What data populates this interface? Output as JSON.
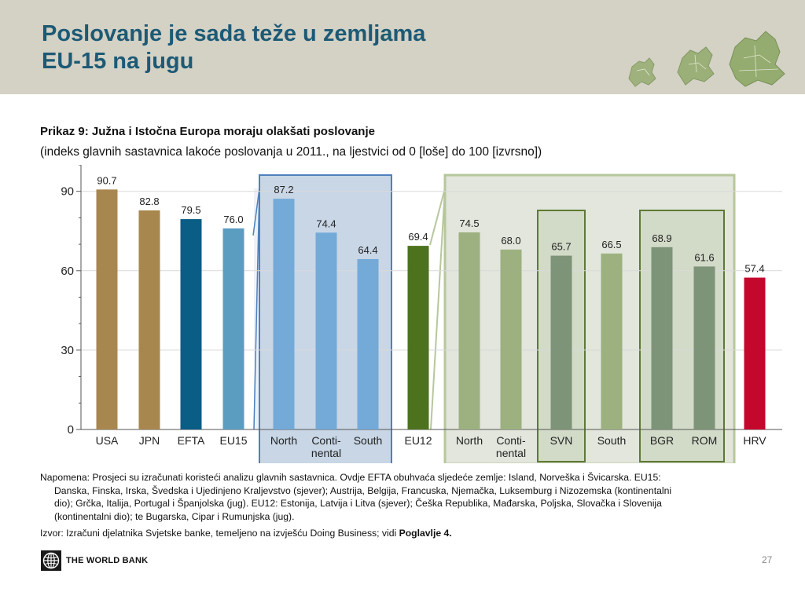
{
  "header": {
    "title_line1": "Poslovanje je sada teže u zemljama",
    "title_line2": "EU-15 na jugu"
  },
  "figure": {
    "title": "Prikaz 9: Južna i Istočna Europa moraju olakšati poslovanje",
    "subtitle": "(indeks glavnih sastavnica lakoće poslovanja u 2011., na ljestvici od 0 [loše] do 100 [izvrsno])"
  },
  "chart_data": {
    "type": "bar",
    "ylim": [
      0,
      100
    ],
    "yticks": [
      0,
      30,
      60,
      90
    ],
    "categories": [
      [
        "USA"
      ],
      [
        "JPN"
      ],
      [
        "EFTA"
      ],
      [
        "EU15"
      ],
      [
        "North"
      ],
      [
        "Conti-",
        "nental"
      ],
      [
        "South"
      ],
      [
        "EU12"
      ],
      [
        "North"
      ],
      [
        "Conti-",
        "nental"
      ],
      [
        "SVN"
      ],
      [
        "South"
      ],
      [
        "BGR"
      ],
      [
        "ROM"
      ],
      [
        "HRV"
      ]
    ],
    "values": [
      90.7,
      82.8,
      79.5,
      76.0,
      87.2,
      74.4,
      64.4,
      69.4,
      74.5,
      68.0,
      65.7,
      66.5,
      68.9,
      61.6,
      57.4
    ],
    "value_labels": [
      "90.7",
      "82.8",
      "79.5",
      "76.0",
      "87.2",
      "74.4",
      "64.4",
      "69.4",
      "74.5",
      "68.0",
      "65.7",
      "66.5",
      "68.9",
      "61.6",
      "57.4"
    ],
    "colors": [
      "#a8874f",
      "#a8874f",
      "#0a5d84",
      "#5b9dc1",
      "#74aad8",
      "#74aad8",
      "#74aad8",
      "#4c721e",
      "#9cb17f",
      "#9cb17f",
      "#7d9478",
      "#9cb17f",
      "#7d9478",
      "#7d9478",
      "#c4072d"
    ],
    "groups": {
      "eu15_box": {
        "fill": "#c8d6e6",
        "stroke": "#4f80bd"
      },
      "eu12_box": {
        "fill": "#e2e6dc",
        "stroke": "#b7c79c"
      },
      "sub_box": {
        "fill": "#d2dac8",
        "stroke": "#5e7a34"
      }
    }
  },
  "notes": {
    "line1": "Napomena: Prosjeci su izračunati koristeći analizu glavnih sastavnica. Ovdje EFTA obuhvaća sljedeće zemlje: Island, Norveška i Švicarska. EU15:",
    "line2": "Danska, Finska, Irska, Švedska i Ujedinjeno Kraljevstvo (sjever); Austrija, Belgija, Francuska, Njemačka, Luksemburg i Nizozemska (kontinentalni",
    "line3": "dio); Grčka, Italija, Portugal i Španjolska (jug). EU12: Estonija, Latvija i Litva (sjever); Češka Republika, Mađarska, Poljska, Slovačka i Slovenija",
    "line4": "(kontinentalni dio); te Bugarska, Cipar i Rumunjska (jug)."
  },
  "source": {
    "text": "Izvor: Izračuni djelatnika Svjetske banke, temeljeno na izvješću Doing Business; vidi ",
    "bold": "Poglavlje 4."
  },
  "footer": {
    "logo_text": "THE WORLD BANK",
    "page": "27"
  }
}
